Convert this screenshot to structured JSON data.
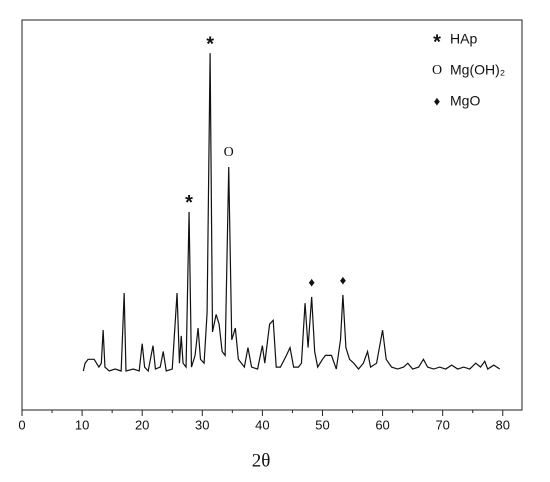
{
  "chart_data": {
    "type": "line",
    "x_label": "2θ",
    "x": [
      10.2,
      10.5,
      11,
      12,
      12.8,
      13.2,
      13.5,
      13.8,
      14.5,
      15.5,
      16.5,
      17,
      17.3,
      18.5,
      19.5,
      20,
      20.4,
      21,
      21.8,
      22.2,
      23,
      23.5,
      24,
      25,
      25.8,
      26.2,
      26.5,
      26.8,
      27.3,
      27.8,
      28.2,
      28.8,
      29.3,
      29.7,
      30.3,
      30.8,
      31.3,
      31.7,
      32.3,
      32.8,
      33.3,
      33.8,
      34.4,
      34.9,
      35.5,
      36,
      37,
      37.6,
      38.2,
      39.2,
      40,
      40.4,
      41.2,
      41.8,
      42.3,
      43,
      44,
      44.6,
      45.2,
      46,
      46.5,
      47.1,
      47.6,
      48.2,
      48.7,
      49.2,
      50,
      50.5,
      51.5,
      52.3,
      53,
      53.4,
      53.9,
      54.5,
      55.2,
      56,
      56.8,
      57.5,
      58,
      59,
      60,
      60.6,
      61.5,
      62.5,
      63.5,
      64.2,
      65,
      66,
      66.8,
      67.5,
      68.5,
      69.5,
      70.5,
      71.5,
      72.5,
      73.5,
      74.5,
      75.5,
      76.3,
      77,
      77.5,
      78.5,
      79.5
    ],
    "series": [
      {
        "color": "#111111",
        "values": [
          10,
          12,
          13,
          13,
          11,
          12,
          20.5,
          11,
          10,
          10.5,
          10,
          30,
          10,
          10.5,
          10,
          17,
          11,
          10,
          16.5,
          10.5,
          11,
          15,
          10,
          10.5,
          30,
          12,
          19,
          12,
          11,
          50.8,
          11,
          14,
          21,
          13,
          12,
          25,
          91.5,
          20,
          24.5,
          22,
          15,
          14,
          62.3,
          18,
          21,
          13,
          11,
          16,
          11,
          10.5,
          16.5,
          12,
          22,
          23,
          11,
          11,
          14,
          16,
          11,
          11,
          12,
          27.4,
          16,
          29,
          15,
          11,
          13,
          14,
          14,
          10.5,
          18,
          29.5,
          16,
          13,
          12,
          10.5,
          12,
          15,
          11,
          12,
          20.5,
          13,
          11,
          10.5,
          11,
          12,
          10.5,
          11,
          13,
          11,
          10.5,
          11,
          10.5,
          11.5,
          10.5,
          11,
          10.5,
          12,
          11,
          12.5,
          10.5,
          11.5,
          10.5
        ]
      }
    ],
    "xlim": [
      0,
      83.2
    ],
    "ylim": [
      0,
      100
    ],
    "xticks": [
      0,
      10,
      20,
      30,
      40,
      50,
      60,
      70,
      80
    ],
    "xminorticks": [
      5,
      15,
      25,
      35,
      45,
      55,
      65,
      75
    ],
    "annotations": [
      {
        "text": "*",
        "x": 27.8
      },
      {
        "text": "*",
        "x": 31.3
      },
      {
        "text": "O",
        "x": 34.4
      },
      {
        "text": "♦",
        "x": 48.2
      },
      {
        "text": "♦",
        "x": 53.4
      }
    ],
    "legend": [
      {
        "symbol": "*",
        "label": "HAp"
      },
      {
        "symbol": "O",
        "label": "Mg(OH)₂"
      },
      {
        "symbol": "♦",
        "label": "MgO"
      }
    ]
  }
}
